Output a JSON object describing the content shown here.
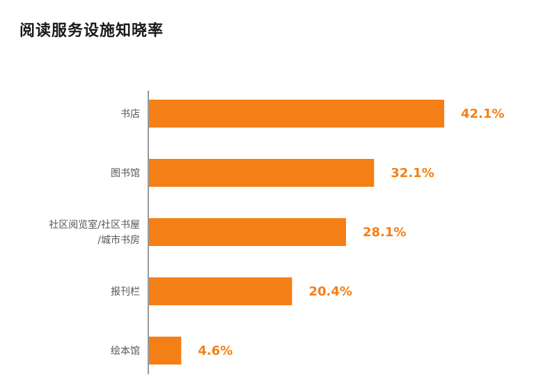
{
  "chart_data": {
    "type": "bar",
    "orientation": "horizontal",
    "title": "阅读服务设施知晓率",
    "categories": [
      [
        "书店"
      ],
      [
        "图书馆"
      ],
      [
        "社区阅览室/社区书屋",
        "/城市书房"
      ],
      [
        "报刊栏"
      ],
      [
        "绘本馆"
      ]
    ],
    "values": [
      42.1,
      32.1,
      28.1,
      20.4,
      4.6
    ],
    "value_labels": [
      "42.1%",
      "32.1%",
      "28.1%",
      "20.4%",
      "4.6%"
    ],
    "xlim": [
      0,
      42.1
    ],
    "grid": false,
    "xlabel": "",
    "ylabel": ""
  },
  "colors": {
    "bar": "#f57f17",
    "value_text": "#f57f17",
    "axis": "#777777",
    "category_text": "#555555",
    "title_text": "#1a1a1a"
  }
}
